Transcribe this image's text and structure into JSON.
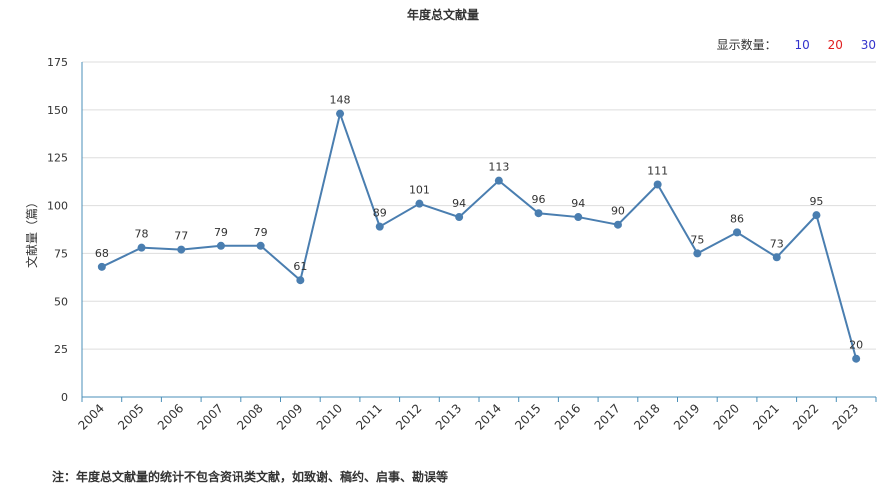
{
  "header": {
    "title": "年度总文献量",
    "display_count_label": "显示数量：",
    "display_options": [
      {
        "label": "10",
        "color": "#3333cc"
      },
      {
        "label": "20",
        "color": "#e02020"
      },
      {
        "label": "30",
        "color": "#3333cc"
      }
    ]
  },
  "footnote": "注：年度总文献量的统计不包含资讯类文献，如致谢、稿约、启事、勘误等",
  "chart_data": {
    "type": "line",
    "title": "年度总文献量",
    "ylabel": "文献量（篇）",
    "xlabel": "",
    "ylim": [
      0,
      175
    ],
    "yticks": [
      0,
      25,
      50,
      75,
      100,
      125,
      150,
      175
    ],
    "categories": [
      "2004",
      "2005",
      "2006",
      "2007",
      "2008",
      "2009",
      "2010",
      "2011",
      "2012",
      "2013",
      "2014",
      "2015",
      "2016",
      "2017",
      "2018",
      "2019",
      "2020",
      "2021",
      "2022",
      "2023"
    ],
    "values": [
      68,
      78,
      77,
      79,
      79,
      61,
      148,
      89,
      101,
      94,
      113,
      96,
      94,
      90,
      111,
      75,
      86,
      73,
      95,
      20
    ],
    "line_color": "#4a7eb0",
    "grid": true,
    "legend": "none"
  }
}
